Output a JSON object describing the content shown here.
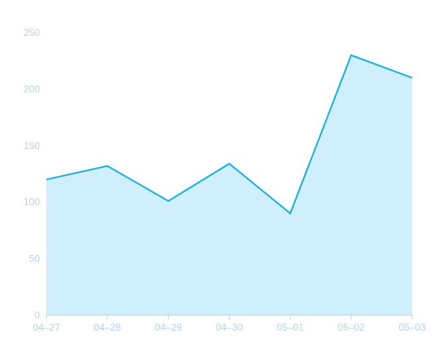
{
  "chart_data": {
    "type": "area",
    "title": "",
    "xlabel": "",
    "ylabel": "",
    "categories": [
      "04–27",
      "04–28",
      "04–29",
      "04–30",
      "05–01",
      "05–02",
      "05–03"
    ],
    "series": [
      {
        "values": [
          120,
          132,
          101,
          134,
          90,
          230,
          210
        ]
      }
    ],
    "ylim": [
      0,
      250
    ],
    "yticks": [
      0,
      50,
      100,
      150,
      200,
      250
    ],
    "grid": false,
    "legend": "none",
    "colors": {
      "line": "#1AAEE3",
      "fill": "#CFEFFD",
      "axis": "#B5D3EA",
      "tick_text": "#B5D3EA"
    }
  }
}
